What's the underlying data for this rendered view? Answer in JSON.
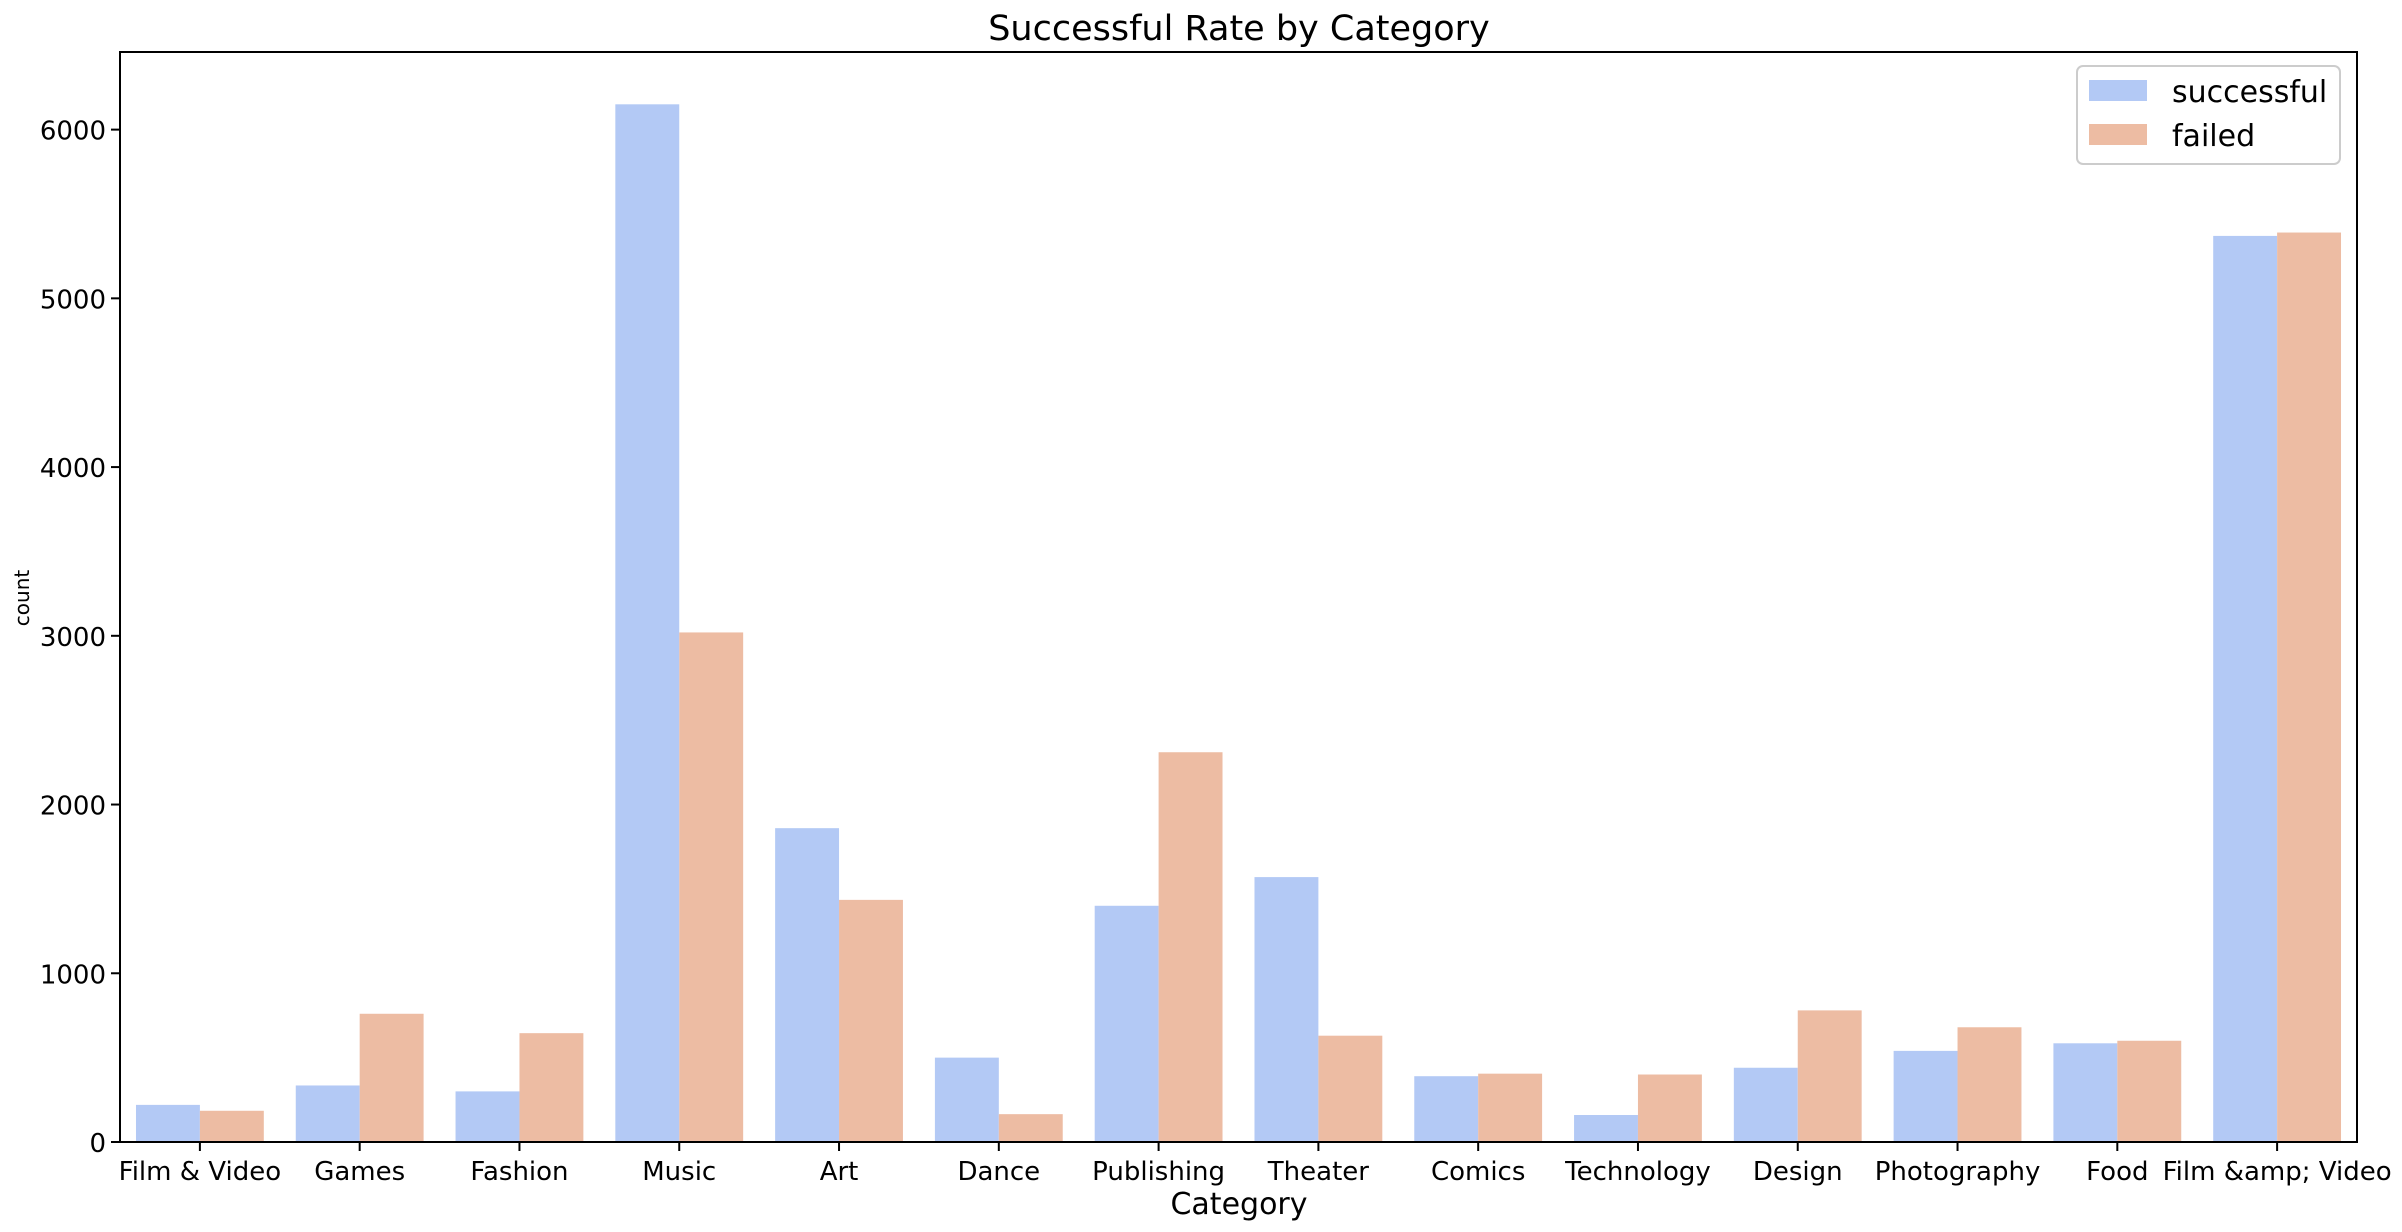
{
  "chart_data": {
    "type": "bar",
    "title": "Successful Rate by Category",
    "xlabel": "Category",
    "ylabel": "count",
    "categories": [
      "Film & Video",
      "Games",
      "Fashion",
      "Music",
      "Art",
      "Dance",
      "Publishing",
      "Theater",
      "Comics",
      "Technology",
      "Design",
      "Photography",
      "Food",
      "Film &amp; Video"
    ],
    "series": [
      {
        "name": "successful",
        "color": "#b3c9f5",
        "values": [
          220,
          335,
          300,
          6150,
          1860,
          500,
          1400,
          1570,
          390,
          160,
          440,
          540,
          585,
          5370
        ]
      },
      {
        "name": "failed",
        "color": "#edbca3",
        "values": [
          185,
          760,
          645,
          3020,
          1435,
          165,
          2310,
          630,
          405,
          400,
          780,
          680,
          600,
          5390
        ]
      }
    ],
    "ylim": [
      0,
      6460
    ],
    "yticks": [
      0,
      1000,
      2000,
      3000,
      4000,
      5000,
      6000
    ],
    "grid": false,
    "legend": {
      "position": "top-right"
    }
  }
}
